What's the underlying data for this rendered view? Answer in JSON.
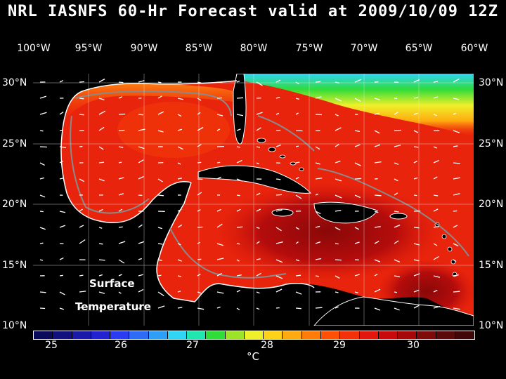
{
  "title": "NRL IASNFS  60-Hr Forecast valid at 2009/10/09 12Z",
  "longitudes": [
    "100°W",
    "95°W",
    "90°W",
    "85°W",
    "80°W",
    "75°W",
    "70°W",
    "65°W",
    "60°W"
  ],
  "latitudes": [
    "30°N",
    "25°N",
    "20°N",
    "15°N",
    "10°N"
  ],
  "field_label_line1": "Surface",
  "field_label_line2": "Temperature",
  "colorbar": {
    "ticks": [
      "25",
      "26",
      "27",
      "28",
      "29",
      "30"
    ],
    "unit": "°C",
    "colors": [
      "#0a0a5a",
      "#10107e",
      "#1a1aa8",
      "#2222d0",
      "#2a3cf0",
      "#2f6cf5",
      "#2f9ef7",
      "#30d4f4",
      "#20e6b0",
      "#30dc3a",
      "#9ce32a",
      "#eef02a",
      "#ffd21a",
      "#ffaa10",
      "#ff7c08",
      "#ff5006",
      "#f2300a",
      "#e2160c",
      "#c80a0c",
      "#a6080a",
      "#7e0a0a",
      "#5a0a0a",
      "#400808"
    ]
  }
}
